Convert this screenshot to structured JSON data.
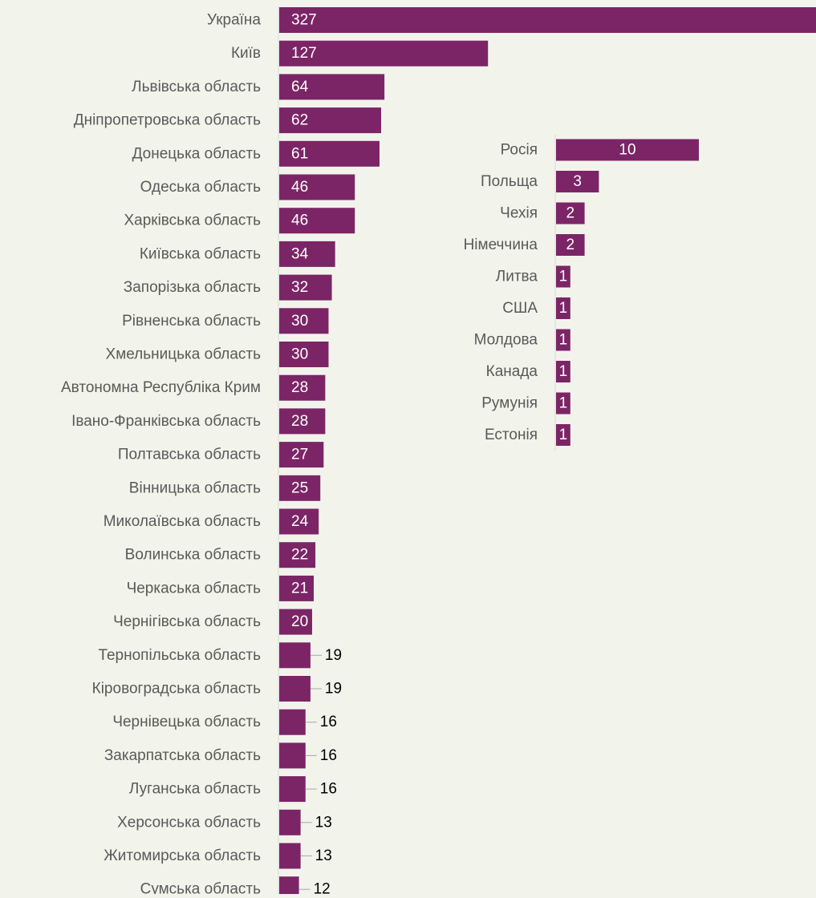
{
  "colors": {
    "background": "#f2f4ec",
    "bar": "#7b2566",
    "label_text": "#595959",
    "value_inside_text": "#ffffff",
    "value_outside_text": "#000000",
    "axis_line": "#d9d9d9",
    "leader_line": "#a6a6a6"
  },
  "chart_data": [
    {
      "type": "bar",
      "orientation": "horizontal",
      "categories": [
        "Україна",
        "Київ",
        "Львівська область",
        "Дніпропетровська область",
        "Донецька область",
        "Одеська область",
        "Харківська область",
        "Київська область",
        "Запорізька область",
        "Рівненська область",
        "Хмельницька область",
        "Автономна Республіка Крим",
        "Івано-Франківська область",
        "Полтавська область",
        "Вінницька область",
        "Миколаївська область",
        "Волинська область",
        "Черкаська область",
        "Чернігівська область",
        "Тернопільська область",
        "Кіровоградська область",
        "Чернівецька область",
        "Закарпатська область",
        "Луганська область",
        "Херсонська область",
        "Житомирська область",
        "Сумська область"
      ],
      "values": [
        327,
        127,
        64,
        62,
        61,
        46,
        46,
        34,
        32,
        30,
        30,
        28,
        28,
        27,
        25,
        24,
        22,
        21,
        20,
        19,
        19,
        16,
        16,
        16,
        13,
        13,
        12
      ],
      "title": "",
      "xlabel": "",
      "ylabel": "",
      "grid": false,
      "legend": "none"
    },
    {
      "type": "bar",
      "orientation": "horizontal",
      "categories": [
        "Росія",
        "Польща",
        "Чехія",
        "Німеччина",
        "Литва",
        "США",
        "Молдова",
        "Канада",
        "Румунія",
        "Естонія"
      ],
      "values": [
        10,
        3,
        2,
        2,
        1,
        1,
        1,
        1,
        1,
        1
      ],
      "title": "",
      "xlabel": "",
      "ylabel": "",
      "grid": false,
      "legend": "none"
    }
  ]
}
